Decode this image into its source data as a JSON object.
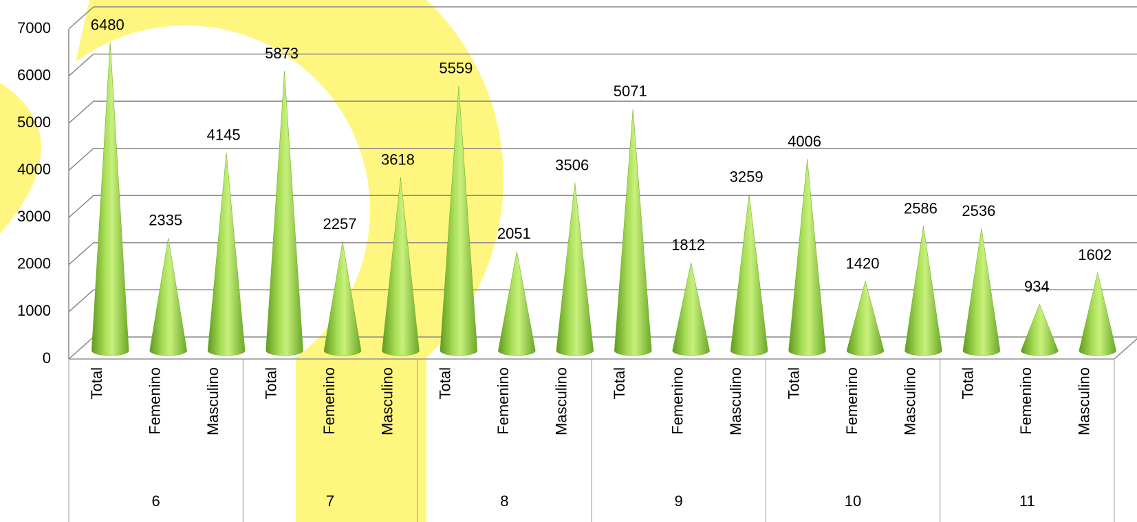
{
  "chart_data": {
    "type": "cone",
    "categories": [
      "Total",
      "Femenino",
      "Masculino",
      "Total",
      "Femenino",
      "Masculino",
      "Total",
      "Femenino",
      "Masculino",
      "Total",
      "Femenino",
      "Masculino",
      "Total",
      "Femenino",
      "Masculino",
      "Total",
      "Femenino",
      "Masculino"
    ],
    "groups": [
      "6",
      "7",
      "8",
      "9",
      "10",
      "11"
    ],
    "values": [
      6480,
      2335,
      4145,
      5873,
      2257,
      3618,
      5559,
      2051,
      3506,
      5071,
      1812,
      3259,
      4006,
      1420,
      2586,
      2536,
      934,
      1602
    ],
    "color": "#8cc63f",
    "ylim": [
      0,
      7000
    ],
    "yticks": [
      0,
      1000,
      2000,
      3000,
      4000,
      5000,
      6000,
      7000
    ],
    "grid": true
  }
}
